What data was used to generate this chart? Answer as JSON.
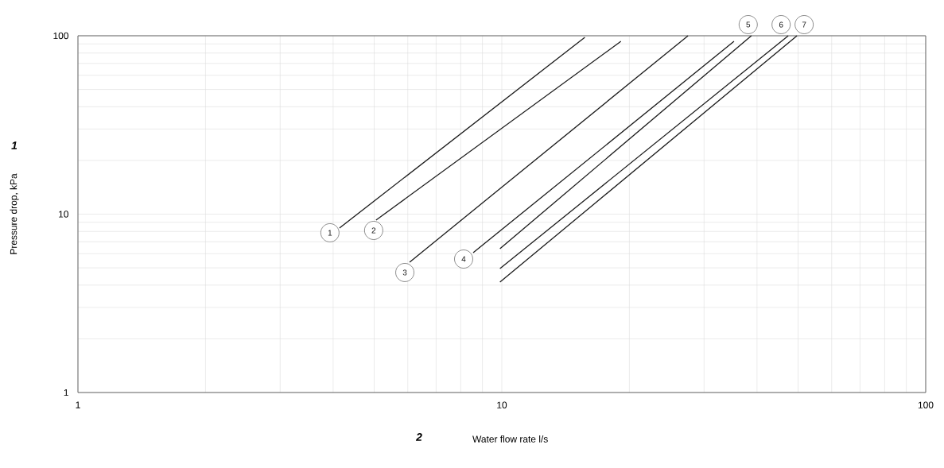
{
  "chart_data": {
    "type": "line",
    "xlabel": "Water flow rate l/s",
    "ylabel": "Pressure drop, kPa",
    "annotations": [
      "1",
      "2"
    ],
    "log": "xy",
    "grid": true,
    "marker": "none",
    "line_style": "solid",
    "xlim": [
      1,
      100
    ],
    "ylim": [
      1,
      100
    ],
    "xticks": [
      1,
      10,
      100
    ],
    "yticks": [
      1,
      10,
      100
    ],
    "series": [
      {
        "name": "1",
        "color": "#1a1a1a",
        "x": [
          4.14,
          15.7
        ],
        "values": [
          8.36,
          98
        ]
      },
      {
        "name": "2",
        "color": "#1a1a1a",
        "x": [
          5.05,
          19.1
        ],
        "values": [
          9.26,
          93
        ]
      },
      {
        "name": "3",
        "color": "#1a1a1a",
        "x": [
          6.06,
          27.5
        ],
        "values": [
          5.38,
          100
        ]
      },
      {
        "name": "4",
        "color": "#1a1a1a",
        "x": [
          8.56,
          35.3
        ],
        "values": [
          6.08,
          93
        ]
      },
      {
        "name": "5",
        "color": "#1a1a1a",
        "x": [
          9.9,
          38.8
        ],
        "values": [
          6.4,
          100
        ]
      },
      {
        "name": "6",
        "color": "#1a1a1a",
        "x": [
          9.9,
          47.4
        ],
        "values": [
          4.95,
          100
        ]
      },
      {
        "name": "7",
        "color": "#1a1a1a",
        "x": [
          9.9,
          49.7
        ],
        "values": [
          4.16,
          100
        ]
      }
    ]
  }
}
